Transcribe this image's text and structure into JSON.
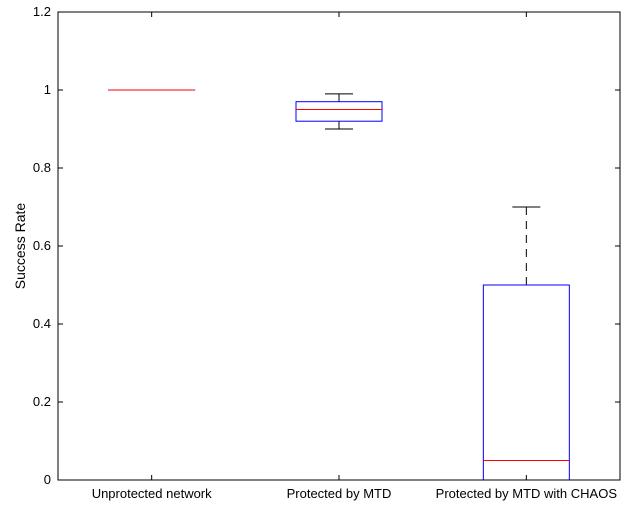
{
  "chart_data": {
    "type": "boxplot",
    "title": "",
    "xlabel": "",
    "ylabel": "Success Rate",
    "ylim": [
      0,
      1.2
    ],
    "yticks": [
      0,
      0.2,
      0.4,
      0.6,
      0.8,
      1,
      1.2
    ],
    "ytick_labels": [
      "0",
      "0.2",
      "0.4",
      "0.6",
      "0.8",
      "1",
      "1.2"
    ],
    "categories": [
      "Unprotected network",
      "Protected by MTD",
      "Protected by MTD with CHAOS"
    ],
    "boxes": [
      {
        "min": 1.0,
        "q1": 1.0,
        "median": 1.0,
        "q3": 1.0,
        "max": 1.0
      },
      {
        "min": 0.9,
        "q1": 0.92,
        "median": 0.95,
        "q3": 0.97,
        "max": 0.99
      },
      {
        "min": 0.0,
        "q1": 0.0,
        "median": 0.05,
        "q3": 0.5,
        "max": 0.7
      }
    ],
    "grid": false,
    "legend": "none",
    "colors": {
      "box": "#0000ff",
      "median": "#ff0000",
      "whisker": "#000000",
      "axis": "#000000"
    }
  }
}
